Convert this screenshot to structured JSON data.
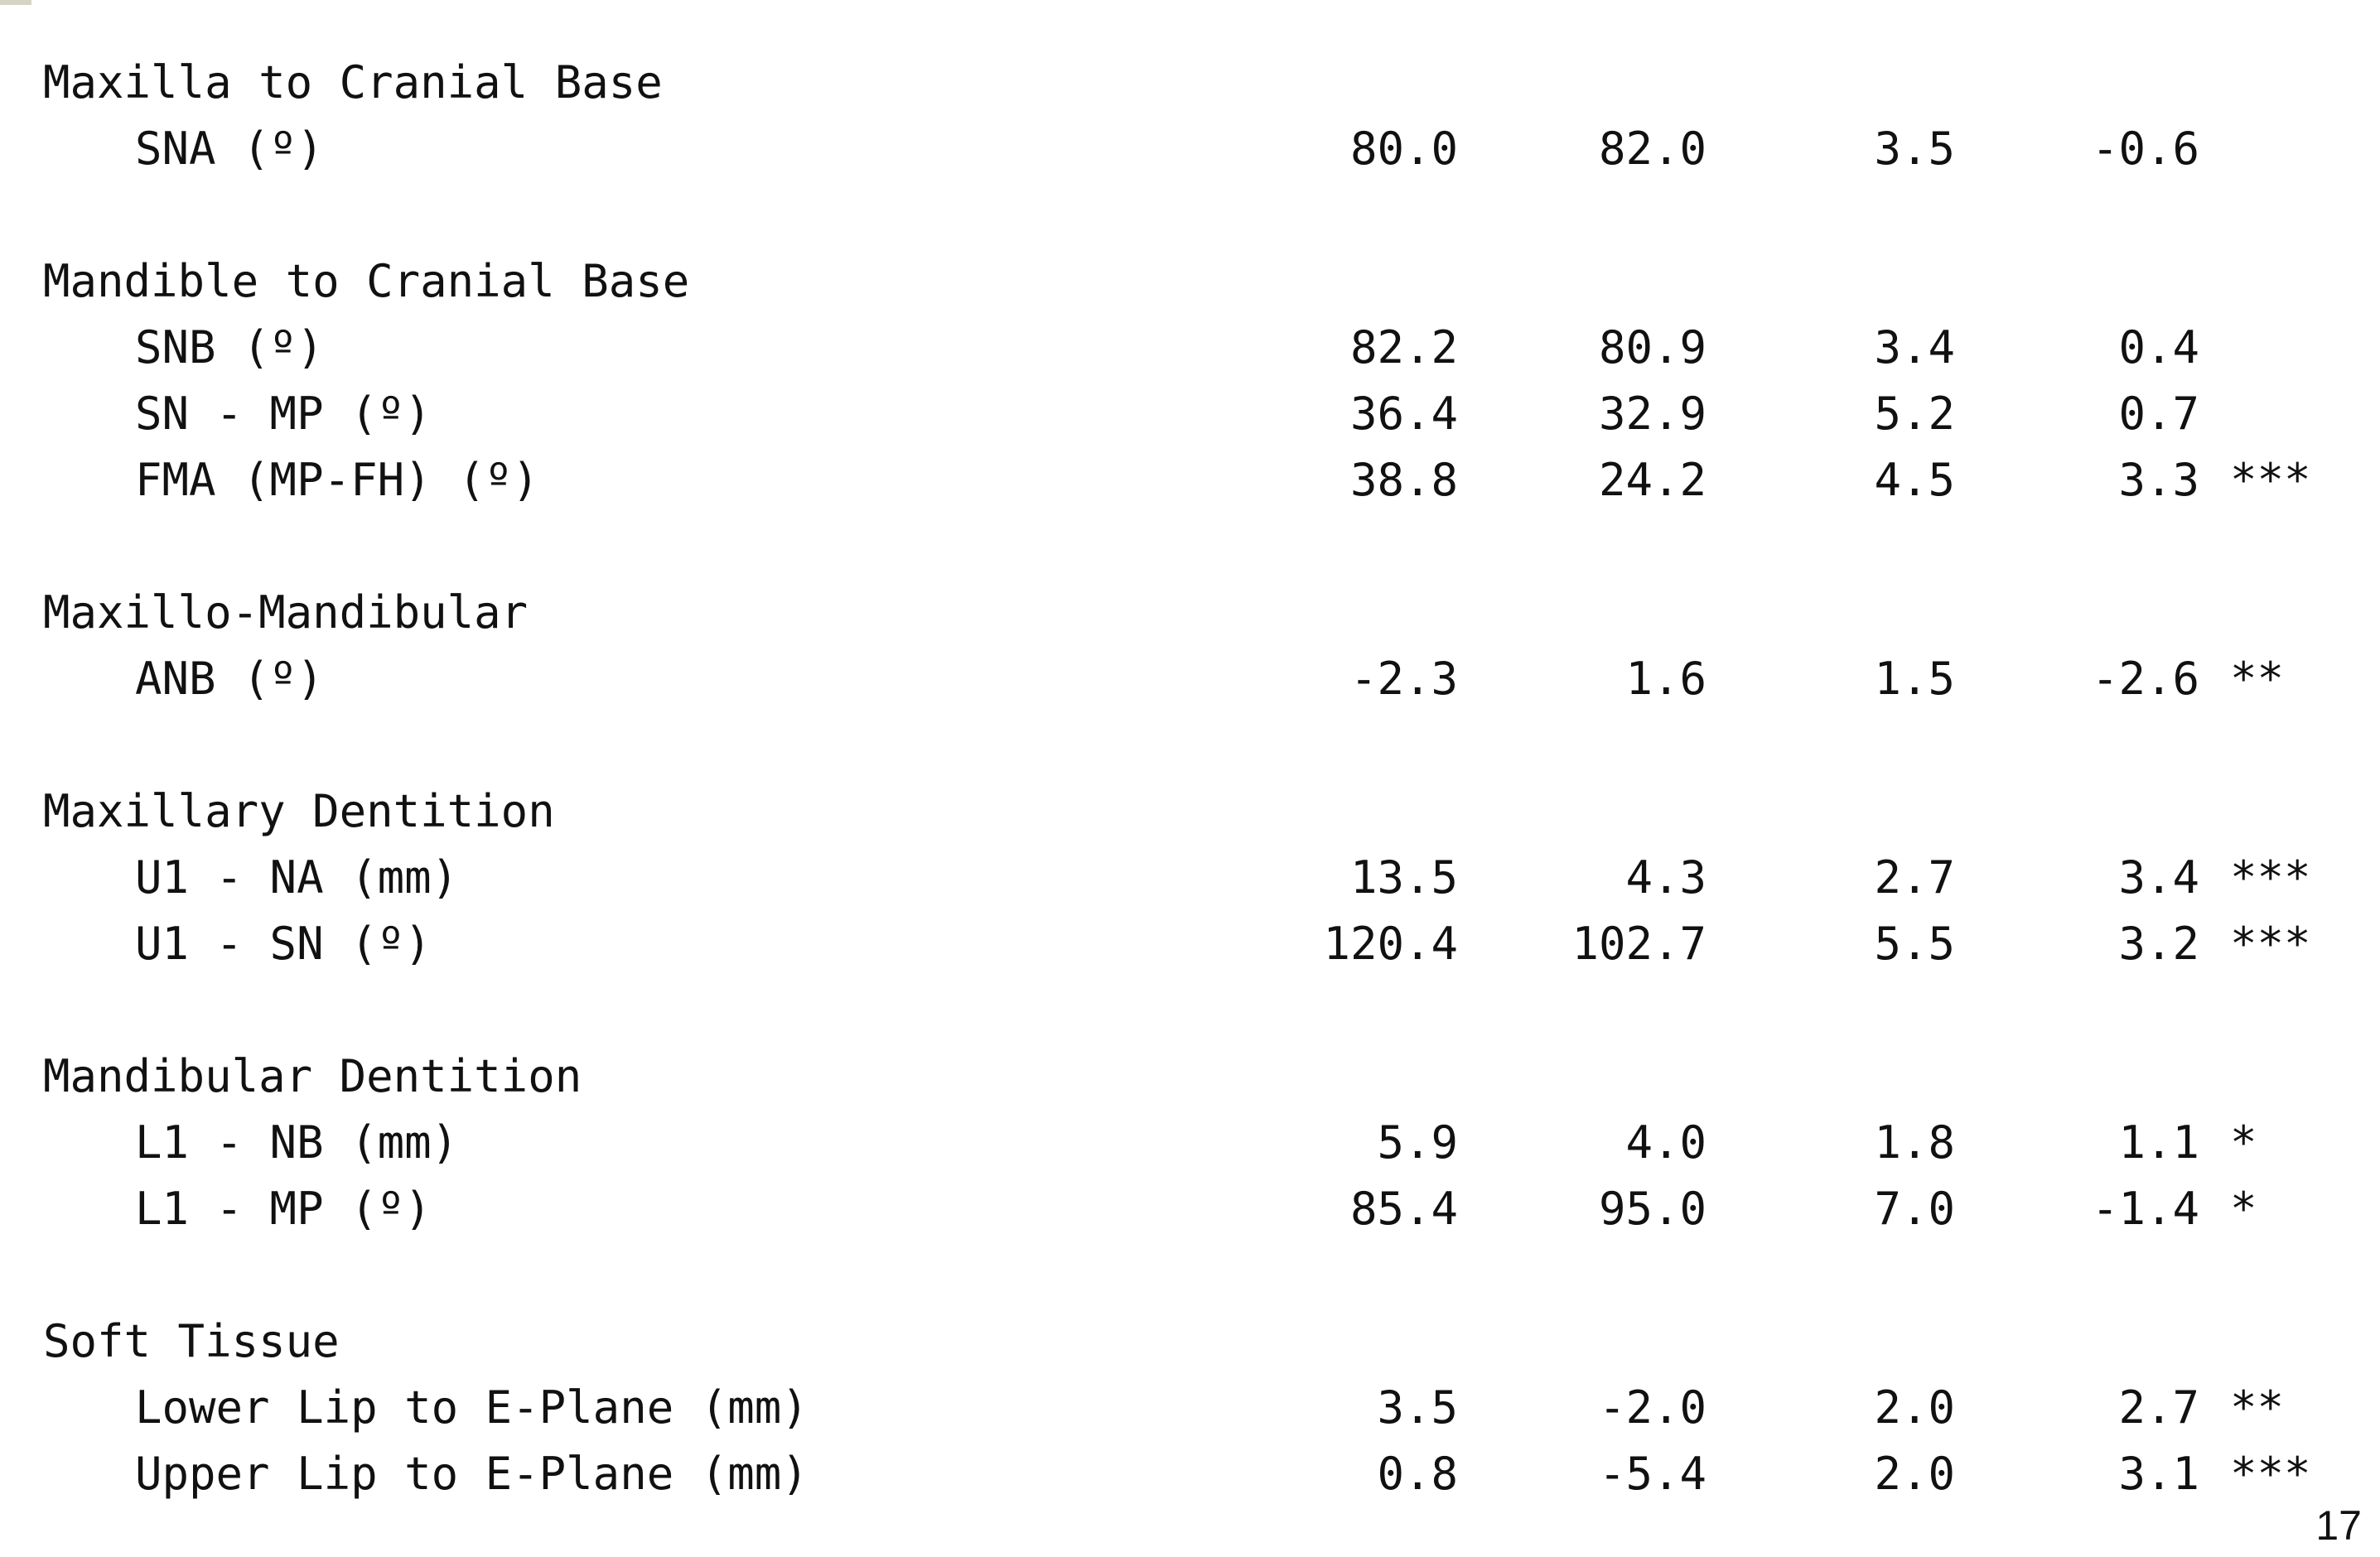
{
  "sections": [
    {
      "heading": "Maxilla to Cranial Base",
      "rows": [
        {
          "label": "SNA (º)",
          "v1": "80.0",
          "v2": "82.0",
          "v3": "3.5",
          "v4": "-0.6",
          "sig": ""
        }
      ]
    },
    {
      "heading": "Mandible to Cranial Base",
      "rows": [
        {
          "label": "SNB (º)",
          "v1": "82.2",
          "v2": "80.9",
          "v3": "3.4",
          "v4": "0.4",
          "sig": ""
        },
        {
          "label": "SN - MP (º)",
          "v1": "36.4",
          "v2": "32.9",
          "v3": "5.2",
          "v4": "0.7",
          "sig": ""
        },
        {
          "label": "FMA (MP-FH) (º)",
          "v1": "38.8",
          "v2": "24.2",
          "v3": "4.5",
          "v4": "3.3",
          "sig": "***"
        }
      ]
    },
    {
      "heading": "Maxillo-Mandibular",
      "rows": [
        {
          "label": "ANB (º)",
          "v1": "-2.3",
          "v2": "1.6",
          "v3": "1.5",
          "v4": "-2.6",
          "sig": "**"
        }
      ]
    },
    {
      "heading": "Maxillary Dentition",
      "rows": [
        {
          "label": "U1 - NA (mm)",
          "v1": "13.5",
          "v2": "4.3",
          "v3": "2.7",
          "v4": "3.4",
          "sig": "***"
        },
        {
          "label": "U1 - SN (º)",
          "v1": "120.4",
          "v2": "102.7",
          "v3": "5.5",
          "v4": "3.2",
          "sig": "***"
        }
      ]
    },
    {
      "heading": "Mandibular Dentition",
      "rows": [
        {
          "label": "L1 - NB (mm)",
          "v1": "5.9",
          "v2": "4.0",
          "v3": "1.8",
          "v4": "1.1",
          "sig": "*"
        },
        {
          "label": "L1 - MP (º)",
          "v1": "85.4",
          "v2": "95.0",
          "v3": "7.0",
          "v4": "-1.4",
          "sig": "*"
        }
      ]
    },
    {
      "heading": "Soft Tissue",
      "rows": [
        {
          "label": "Lower Lip to E-Plane (mm)",
          "v1": "3.5",
          "v2": "-2.0",
          "v3": "2.0",
          "v4": "2.7",
          "sig": "**"
        },
        {
          "label": "Upper Lip to E-Plane (mm)",
          "v1": "0.8",
          "v2": "-5.4",
          "v3": "2.0",
          "v4": "3.1",
          "sig": "***"
        }
      ]
    }
  ],
  "page_number": "17"
}
